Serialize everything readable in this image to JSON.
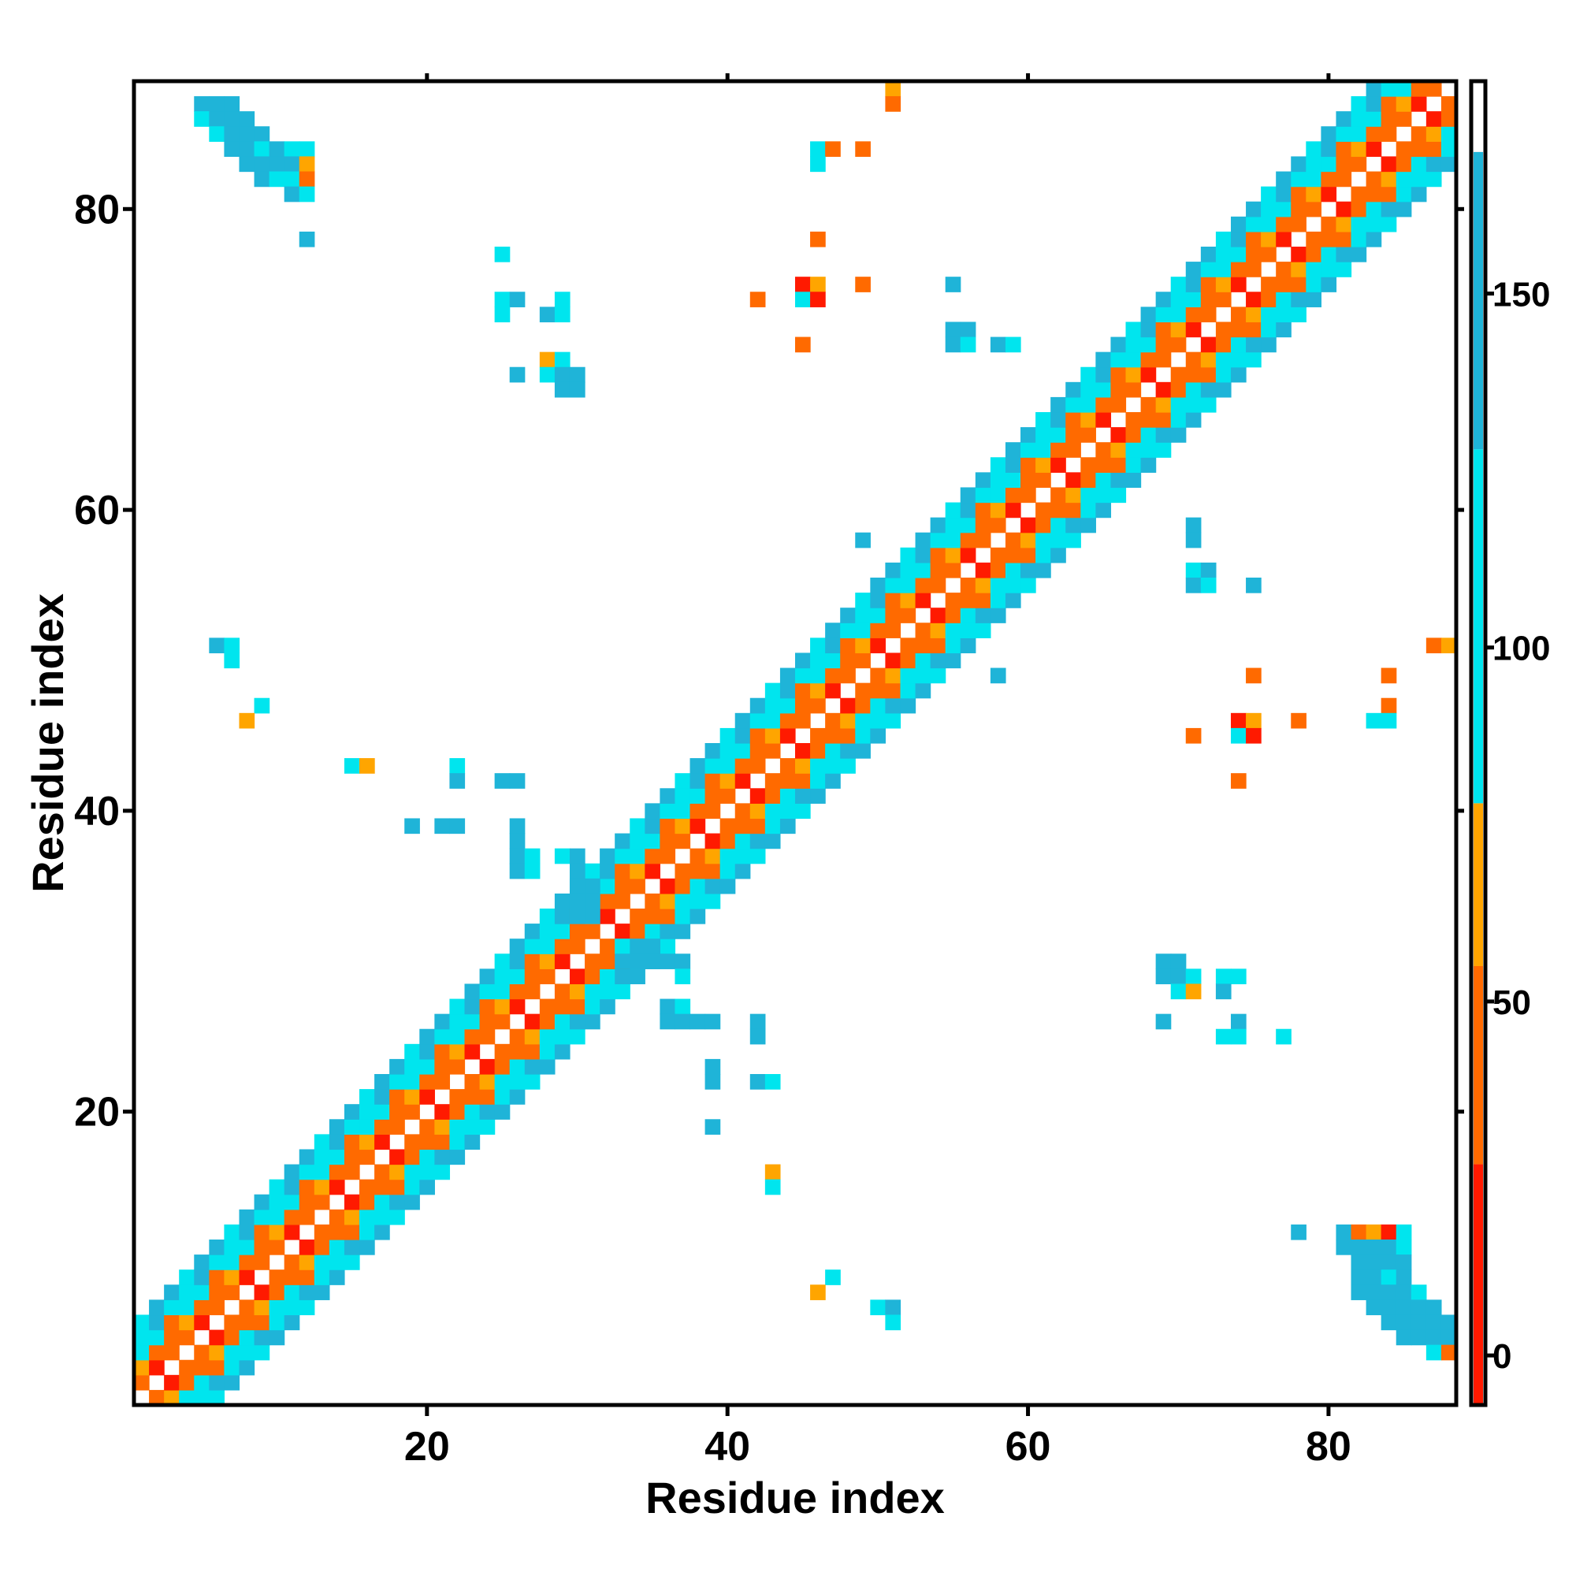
{
  "chart_data": {
    "type": "heatmap",
    "title": "",
    "xlabel": "Residue index",
    "ylabel": "Residue index",
    "xlim": [
      1,
      88
    ],
    "ylim": [
      1,
      88
    ],
    "x_ticks": [
      20,
      40,
      60,
      80
    ],
    "y_ticks": [
      20,
      40,
      60,
      80
    ],
    "x_tick_labels": [
      "20",
      "40",
      "60",
      "80"
    ],
    "y_tick_labels": [
      "20",
      "40",
      "60",
      "80"
    ],
    "symmetric": true,
    "grid": false,
    "colorbar": {
      "position": "right",
      "ticks": [
        0,
        50,
        100,
        150
      ],
      "tick_labels": [
        "0",
        "50",
        "100",
        "150"
      ],
      "range": [
        -7,
        180
      ],
      "bands": [
        {
          "from": -7,
          "to": 27,
          "color": "#ff1a00"
        },
        {
          "from": 27,
          "to": 55,
          "color": "#ff6a00"
        },
        {
          "from": 55,
          "to": 78,
          "color": "#ffa500"
        },
        {
          "from": 78,
          "to": 128,
          "color": "#00e5ee"
        },
        {
          "from": 128,
          "to": 170,
          "color": "#1fb4d8"
        },
        {
          "from": 170,
          "to": 180,
          "color": "#4682b4"
        }
      ]
    },
    "colors": {
      "red": "#ff1a00",
      "dark_orange": "#ff6a00",
      "orange": "#ffa500",
      "cyan": "#00e5ee",
      "sky_blue": "#1fb4d8",
      "steel_blue": "#4682b4"
    },
    "band_model": {
      "description_off": "",
      "diagonals": [
        {
          "offset": 1,
          "value": 40,
          "alt": 15
        },
        {
          "offset": 2,
          "value": 45,
          "alt": 60
        },
        {
          "offset": 3,
          "value": 110,
          "alt": 50
        },
        {
          "offset": 4,
          "value": 115,
          "alt": 135
        },
        {
          "offset": 5,
          "value": 140,
          "alt": 100
        }
      ]
    },
    "off_diagonal_contacts": [
      {
        "x": 5,
        "y": 87,
        "value": 140
      },
      {
        "x": 6,
        "y": 87,
        "value": 150
      },
      {
        "x": 7,
        "y": 87,
        "value": 140
      },
      {
        "x": 5,
        "y": 86,
        "value": 110
      },
      {
        "x": 6,
        "y": 86,
        "value": 160
      },
      {
        "x": 7,
        "y": 86,
        "value": 140
      },
      {
        "x": 8,
        "y": 86,
        "value": 150
      },
      {
        "x": 6,
        "y": 85,
        "value": 110
      },
      {
        "x": 7,
        "y": 85,
        "value": 140
      },
      {
        "x": 8,
        "y": 85,
        "value": 140
      },
      {
        "x": 9,
        "y": 85,
        "value": 130
      },
      {
        "x": 7,
        "y": 84,
        "value": 140
      },
      {
        "x": 8,
        "y": 84,
        "value": 150
      },
      {
        "x": 9,
        "y": 84,
        "value": 110
      },
      {
        "x": 10,
        "y": 84,
        "value": 160
      },
      {
        "x": 11,
        "y": 84,
        "value": 110
      },
      {
        "x": 12,
        "y": 84,
        "value": 95
      },
      {
        "x": 8,
        "y": 83,
        "value": 160
      },
      {
        "x": 9,
        "y": 83,
        "value": 150
      },
      {
        "x": 10,
        "y": 83,
        "value": 140
      },
      {
        "x": 11,
        "y": 83,
        "value": 140
      },
      {
        "x": 12,
        "y": 83,
        "value": 60
      },
      {
        "x": 9,
        "y": 82,
        "value": 140
      },
      {
        "x": 10,
        "y": 82,
        "value": 110
      },
      {
        "x": 11,
        "y": 82,
        "value": 110
      },
      {
        "x": 12,
        "y": 82,
        "value": 50
      },
      {
        "x": 11,
        "y": 81,
        "value": 160
      },
      {
        "x": 12,
        "y": 81,
        "value": 95
      },
      {
        "x": 12,
        "y": 78,
        "value": 140
      },
      {
        "x": 51,
        "y": 88,
        "value": 70
      },
      {
        "x": 51,
        "y": 87,
        "value": 45
      },
      {
        "x": 46,
        "y": 84,
        "value": 95
      },
      {
        "x": 47,
        "y": 84,
        "value": 50
      },
      {
        "x": 49,
        "y": 84,
        "value": 45
      },
      {
        "x": 46,
        "y": 83,
        "value": 95
      },
      {
        "x": 46,
        "y": 78,
        "value": 50
      },
      {
        "x": 25,
        "y": 77,
        "value": 95
      },
      {
        "x": 45,
        "y": 75,
        "value": 15
      },
      {
        "x": 46,
        "y": 75,
        "value": 70
      },
      {
        "x": 49,
        "y": 75,
        "value": 40
      },
      {
        "x": 55,
        "y": 75,
        "value": 140
      },
      {
        "x": 42,
        "y": 74,
        "value": 50
      },
      {
        "x": 45,
        "y": 74,
        "value": 95
      },
      {
        "x": 46,
        "y": 74,
        "value": 15
      },
      {
        "x": 25,
        "y": 74,
        "value": 95
      },
      {
        "x": 26,
        "y": 74,
        "value": 160
      },
      {
        "x": 29,
        "y": 74,
        "value": 110
      },
      {
        "x": 25,
        "y": 73,
        "value": 95
      },
      {
        "x": 28,
        "y": 73,
        "value": 140
      },
      {
        "x": 29,
        "y": 73,
        "value": 95
      },
      {
        "x": 55,
        "y": 72,
        "value": 140
      },
      {
        "x": 56,
        "y": 72,
        "value": 160
      },
      {
        "x": 45,
        "y": 71,
        "value": 50
      },
      {
        "x": 55,
        "y": 71,
        "value": 160
      },
      {
        "x": 56,
        "y": 71,
        "value": 95
      },
      {
        "x": 58,
        "y": 71,
        "value": 160
      },
      {
        "x": 59,
        "y": 71,
        "value": 110
      },
      {
        "x": 28,
        "y": 70,
        "value": 70
      },
      {
        "x": 29,
        "y": 70,
        "value": 110
      },
      {
        "x": 26,
        "y": 69,
        "value": 140
      },
      {
        "x": 28,
        "y": 69,
        "value": 95
      },
      {
        "x": 29,
        "y": 69,
        "value": 160
      },
      {
        "x": 30,
        "y": 69,
        "value": 140
      },
      {
        "x": 29,
        "y": 68,
        "value": 140
      },
      {
        "x": 30,
        "y": 68,
        "value": 140
      },
      {
        "x": 49,
        "y": 58,
        "value": 140
      },
      {
        "x": 71,
        "y": 59,
        "value": 140
      },
      {
        "x": 71,
        "y": 58,
        "value": 160
      },
      {
        "x": 71,
        "y": 56,
        "value": 95
      },
      {
        "x": 72,
        "y": 56,
        "value": 160
      },
      {
        "x": 71,
        "y": 55,
        "value": 160
      },
      {
        "x": 72,
        "y": 55,
        "value": 95
      },
      {
        "x": 75,
        "y": 55,
        "value": 140
      },
      {
        "x": 6,
        "y": 51,
        "value": 140
      },
      {
        "x": 7,
        "y": 51,
        "value": 110
      },
      {
        "x": 7,
        "y": 50,
        "value": 95
      },
      {
        "x": 87,
        "y": 51,
        "value": 50
      },
      {
        "x": 88,
        "y": 51,
        "value": 70
      },
      {
        "x": 58,
        "y": 49,
        "value": 140
      },
      {
        "x": 75,
        "y": 49,
        "value": 45
      },
      {
        "x": 84,
        "y": 49,
        "value": 50
      },
      {
        "x": 9,
        "y": 47,
        "value": 110
      },
      {
        "x": 8,
        "y": 46,
        "value": 70
      },
      {
        "x": 84,
        "y": 47,
        "value": 50
      },
      {
        "x": 74,
        "y": 46,
        "value": 15
      },
      {
        "x": 75,
        "y": 46,
        "value": 70
      },
      {
        "x": 78,
        "y": 46,
        "value": 50
      },
      {
        "x": 83,
        "y": 46,
        "value": 95
      },
      {
        "x": 84,
        "y": 46,
        "value": 95
      },
      {
        "x": 71,
        "y": 45,
        "value": 50
      },
      {
        "x": 74,
        "y": 45,
        "value": 95
      },
      {
        "x": 75,
        "y": 45,
        "value": 15
      },
      {
        "x": 74,
        "y": 42,
        "value": 50
      },
      {
        "x": 15,
        "y": 43,
        "value": 95
      },
      {
        "x": 16,
        "y": 43,
        "value": 70
      },
      {
        "x": 22,
        "y": 43,
        "value": 110
      },
      {
        "x": 22,
        "y": 42,
        "value": 160
      },
      {
        "x": 25,
        "y": 42,
        "value": 140
      },
      {
        "x": 26,
        "y": 42,
        "value": 140
      },
      {
        "x": 19,
        "y": 39,
        "value": 160
      },
      {
        "x": 21,
        "y": 39,
        "value": 140
      },
      {
        "x": 22,
        "y": 39,
        "value": 140
      },
      {
        "x": 26,
        "y": 39,
        "value": 160
      },
      {
        "x": 26,
        "y": 38,
        "value": 140
      },
      {
        "x": 26,
        "y": 37,
        "value": 140
      },
      {
        "x": 27,
        "y": 37,
        "value": 110
      },
      {
        "x": 29,
        "y": 37,
        "value": 110
      },
      {
        "x": 30,
        "y": 37,
        "value": 140
      },
      {
        "x": 26,
        "y": 36,
        "value": 160
      },
      {
        "x": 27,
        "y": 36,
        "value": 110
      },
      {
        "x": 30,
        "y": 36,
        "value": 140
      },
      {
        "x": 30,
        "y": 35,
        "value": 140
      },
      {
        "x": 31,
        "y": 35,
        "value": 140
      },
      {
        "x": 30,
        "y": 34,
        "value": 140
      },
      {
        "x": 31,
        "y": 34,
        "value": 160
      },
      {
        "x": 30,
        "y": 33,
        "value": 140
      },
      {
        "x": 31,
        "y": 33,
        "value": 140
      },
      {
        "x": 33,
        "y": 31,
        "value": 110
      },
      {
        "x": 34,
        "y": 31,
        "value": 140
      },
      {
        "x": 35,
        "y": 31,
        "value": 140
      },
      {
        "x": 33,
        "y": 30,
        "value": 140
      },
      {
        "x": 34,
        "y": 30,
        "value": 140
      },
      {
        "x": 35,
        "y": 30,
        "value": 140
      },
      {
        "x": 36,
        "y": 30,
        "value": 160
      },
      {
        "x": 37,
        "y": 30,
        "value": 160
      },
      {
        "x": 37,
        "y": 29,
        "value": 95
      },
      {
        "x": 36,
        "y": 27,
        "value": 140
      },
      {
        "x": 37,
        "y": 27,
        "value": 110
      },
      {
        "x": 36,
        "y": 26,
        "value": 160
      },
      {
        "x": 37,
        "y": 26,
        "value": 140
      },
      {
        "x": 38,
        "y": 26,
        "value": 140
      },
      {
        "x": 39,
        "y": 26,
        "value": 160
      },
      {
        "x": 42,
        "y": 26,
        "value": 140
      },
      {
        "x": 42,
        "y": 25,
        "value": 140
      },
      {
        "x": 39,
        "y": 23,
        "value": 140
      },
      {
        "x": 39,
        "y": 22,
        "value": 140
      },
      {
        "x": 42,
        "y": 22,
        "value": 160
      },
      {
        "x": 43,
        "y": 22,
        "value": 110
      },
      {
        "x": 39,
        "y": 19,
        "value": 160
      },
      {
        "x": 43,
        "y": 16,
        "value": 70
      },
      {
        "x": 43,
        "y": 15,
        "value": 95
      },
      {
        "x": 69,
        "y": 30,
        "value": 140
      },
      {
        "x": 70,
        "y": 30,
        "value": 140
      },
      {
        "x": 69,
        "y": 29,
        "value": 140
      },
      {
        "x": 70,
        "y": 29,
        "value": 140
      },
      {
        "x": 71,
        "y": 29,
        "value": 110
      },
      {
        "x": 73,
        "y": 29,
        "value": 110
      },
      {
        "x": 74,
        "y": 29,
        "value": 95
      },
      {
        "x": 70,
        "y": 28,
        "value": 95
      },
      {
        "x": 71,
        "y": 28,
        "value": 70
      },
      {
        "x": 73,
        "y": 28,
        "value": 140
      },
      {
        "x": 69,
        "y": 26,
        "value": 140
      },
      {
        "x": 74,
        "y": 26,
        "value": 160
      },
      {
        "x": 73,
        "y": 25,
        "value": 110
      },
      {
        "x": 74,
        "y": 25,
        "value": 110
      },
      {
        "x": 77,
        "y": 25,
        "value": 110
      },
      {
        "x": 78,
        "y": 12,
        "value": 140
      },
      {
        "x": 81,
        "y": 12,
        "value": 140
      },
      {
        "x": 82,
        "y": 12,
        "value": 50
      },
      {
        "x": 83,
        "y": 12,
        "value": 70
      },
      {
        "x": 84,
        "y": 12,
        "value": 15
      },
      {
        "x": 85,
        "y": 12,
        "value": 95
      },
      {
        "x": 81,
        "y": 11,
        "value": 140
      },
      {
        "x": 82,
        "y": 11,
        "value": 140
      },
      {
        "x": 83,
        "y": 11,
        "value": 140
      },
      {
        "x": 84,
        "y": 11,
        "value": 140
      },
      {
        "x": 85,
        "y": 11,
        "value": 95
      },
      {
        "x": 82,
        "y": 10,
        "value": 160
      },
      {
        "x": 83,
        "y": 10,
        "value": 160
      },
      {
        "x": 84,
        "y": 10,
        "value": 160
      },
      {
        "x": 85,
        "y": 10,
        "value": 160
      },
      {
        "x": 82,
        "y": 9,
        "value": 140
      },
      {
        "x": 83,
        "y": 9,
        "value": 140
      },
      {
        "x": 84,
        "y": 9,
        "value": 110
      },
      {
        "x": 85,
        "y": 9,
        "value": 140
      },
      {
        "x": 82,
        "y": 8,
        "value": 140
      },
      {
        "x": 83,
        "y": 8,
        "value": 160
      },
      {
        "x": 84,
        "y": 8,
        "value": 140
      },
      {
        "x": 85,
        "y": 8,
        "value": 140
      },
      {
        "x": 86,
        "y": 8,
        "value": 110
      },
      {
        "x": 83,
        "y": 7,
        "value": 140
      },
      {
        "x": 84,
        "y": 7,
        "value": 140
      },
      {
        "x": 85,
        "y": 7,
        "value": 140
      },
      {
        "x": 86,
        "y": 7,
        "value": 140
      },
      {
        "x": 87,
        "y": 7,
        "value": 140
      },
      {
        "x": 84,
        "y": 6,
        "value": 140
      },
      {
        "x": 85,
        "y": 6,
        "value": 140
      },
      {
        "x": 86,
        "y": 6,
        "value": 140
      },
      {
        "x": 87,
        "y": 6,
        "value": 140
      },
      {
        "x": 88,
        "y": 6,
        "value": 140
      },
      {
        "x": 85,
        "y": 5,
        "value": 140
      },
      {
        "x": 86,
        "y": 5,
        "value": 160
      },
      {
        "x": 87,
        "y": 5,
        "value": 160
      },
      {
        "x": 88,
        "y": 5,
        "value": 140
      },
      {
        "x": 87,
        "y": 4,
        "value": 95
      },
      {
        "x": 88,
        "y": 4,
        "value": 50
      },
      {
        "x": 47,
        "y": 9,
        "value": 95
      },
      {
        "x": 46,
        "y": 8,
        "value": 70
      },
      {
        "x": 50,
        "y": 7,
        "value": 95
      },
      {
        "x": 51,
        "y": 7,
        "value": 140
      },
      {
        "x": 51,
        "y": 6,
        "value": 110
      }
    ]
  }
}
